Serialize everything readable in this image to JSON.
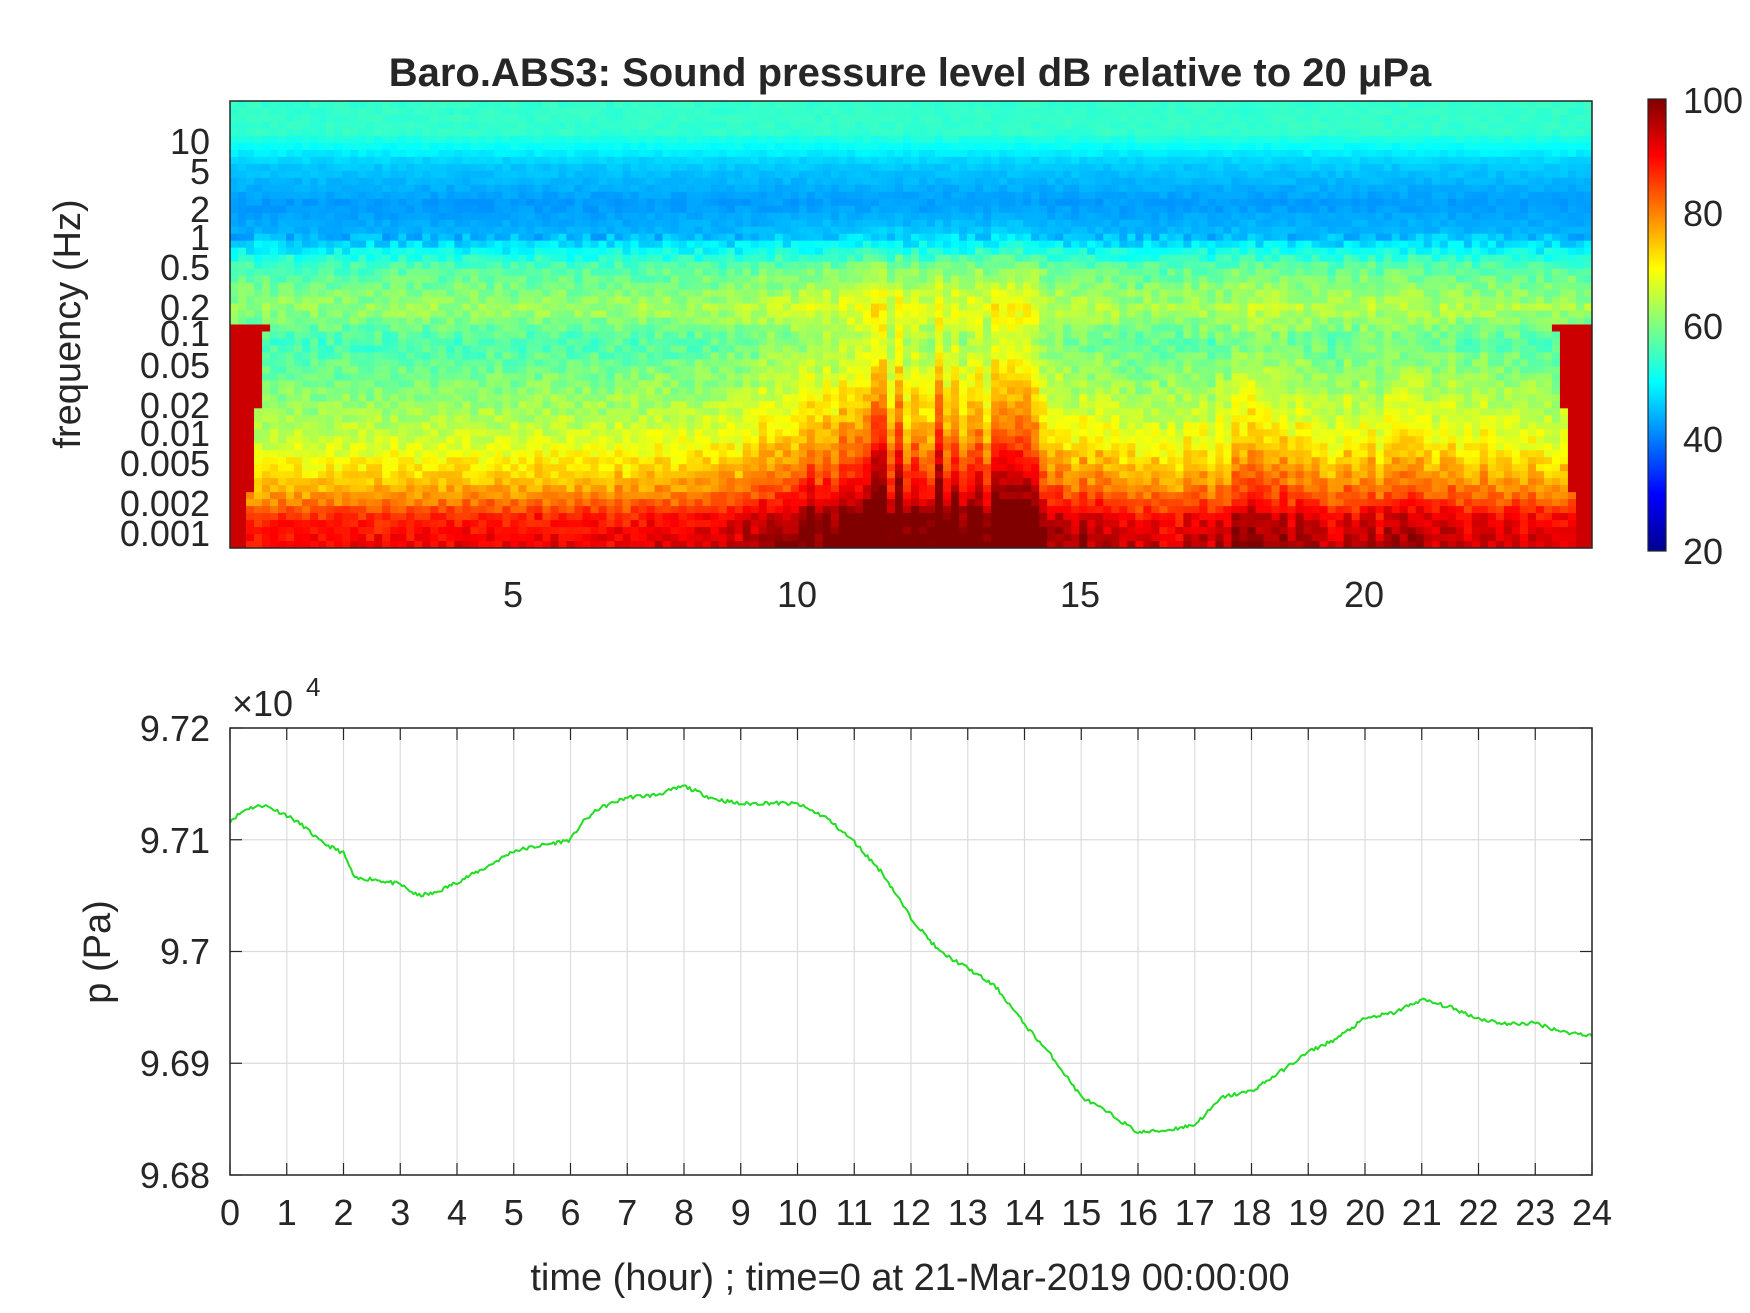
{
  "chart_data": [
    {
      "type": "heatmap",
      "title": "Baro.ABS3: Sound pressure level dB relative to 20 μPa",
      "ylabel": "frequency (Hz)",
      "xlabel": "",
      "x_range_hours": [
        0,
        24
      ],
      "y_scale": "log",
      "y_range_hz": [
        0.001,
        20
      ],
      "x_ticks": [
        "5",
        "10",
        "15",
        "20"
      ],
      "y_ticks": [
        "10",
        "5",
        "2",
        "1",
        "0.5",
        "0.2",
        "0.1",
        "0.05",
        "0.02",
        "0.01",
        "0.005",
        "0.002",
        "0.001"
      ],
      "colormap": "jet",
      "colorbar": {
        "range": [
          20,
          100
        ],
        "ticks": [
          "100",
          "80",
          "60",
          "40",
          "20"
        ]
      },
      "colormap_stops": [
        "#00008f",
        "#0000ff",
        "#00ffff",
        "#ffff00",
        "#ff0000",
        "#800000"
      ],
      "profile_hz_db": [
        [
          0.001,
          90
        ],
        [
          0.002,
          86
        ],
        [
          0.003,
          78
        ],
        [
          0.005,
          72
        ],
        [
          0.01,
          66
        ],
        [
          0.02,
          62
        ],
        [
          0.05,
          58
        ],
        [
          0.1,
          55
        ],
        [
          0.2,
          62
        ],
        [
          0.5,
          56
        ],
        [
          1,
          44
        ],
        [
          2,
          42
        ],
        [
          5,
          46
        ],
        [
          10,
          54
        ],
        [
          20,
          54
        ]
      ],
      "activity_hours_gain": [
        [
          0,
          0
        ],
        [
          7,
          2
        ],
        [
          9,
          5
        ],
        [
          10.5,
          12
        ],
        [
          11.2,
          20
        ],
        [
          12.5,
          18
        ],
        [
          14,
          16
        ],
        [
          15,
          8
        ],
        [
          16,
          3
        ],
        [
          17.5,
          5
        ],
        [
          18.2,
          12
        ],
        [
          19,
          5
        ],
        [
          21,
          6
        ],
        [
          24,
          2
        ]
      ]
    },
    {
      "type": "line",
      "ylabel": "p (Pa)",
      "xlabel": "time (hour) ; time=0 at 21-Mar-2019 00:00:00",
      "y_multiplier_label": "×10",
      "y_multiplier_exp": "4",
      "xlim": [
        0,
        24
      ],
      "ylim": [
        9.68,
        9.72
      ],
      "x_ticks": [
        "0",
        "1",
        "2",
        "3",
        "4",
        "5",
        "6",
        "7",
        "8",
        "9",
        "10",
        "11",
        "12",
        "13",
        "14",
        "15",
        "16",
        "17",
        "18",
        "19",
        "20",
        "21",
        "22",
        "23",
        "24"
      ],
      "y_ticks": [
        "9.72",
        "9.71",
        "9.7",
        "9.69",
        "9.68"
      ],
      "grid": true,
      "line_color": "#22dd22",
      "x": [
        0,
        0.3,
        0.6,
        1.0,
        1.3,
        1.6,
        2.0,
        2.2,
        2.5,
        3.0,
        3.3,
        3.6,
        4.0,
        4.5,
        5.0,
        5.5,
        6.0,
        6.2,
        6.5,
        7.0,
        7.5,
        8.0,
        8.5,
        9.0,
        9.5,
        10.0,
        10.5,
        11.0,
        11.5,
        12.0,
        12.5,
        13.0,
        13.5,
        14.0,
        14.5,
        15.0,
        15.5,
        16.0,
        16.5,
        17.0,
        17.5,
        18.0,
        18.5,
        19.0,
        19.5,
        20.0,
        20.5,
        21.0,
        21.5,
        22.0,
        22.5,
        23.0,
        23.5,
        24.0
      ],
      "y": [
        9.7117,
        9.7128,
        9.7131,
        9.7122,
        9.7112,
        9.7098,
        9.7088,
        9.7065,
        9.7065,
        9.706,
        9.705,
        9.7052,
        9.7062,
        9.7075,
        9.709,
        9.7095,
        9.71,
        9.7115,
        9.7128,
        9.7138,
        9.714,
        9.7148,
        9.7137,
        9.7132,
        9.7133,
        9.7132,
        9.712,
        9.7098,
        9.707,
        9.703,
        9.7,
        9.6985,
        9.6968,
        9.6935,
        9.6905,
        9.687,
        9.6855,
        9.6838,
        9.684,
        9.6845,
        9.687,
        9.6875,
        9.6892,
        9.691,
        9.6922,
        9.694,
        9.6945,
        9.6957,
        9.695,
        9.694,
        9.6935,
        9.6936,
        9.6928,
        9.6925
      ]
    }
  ]
}
